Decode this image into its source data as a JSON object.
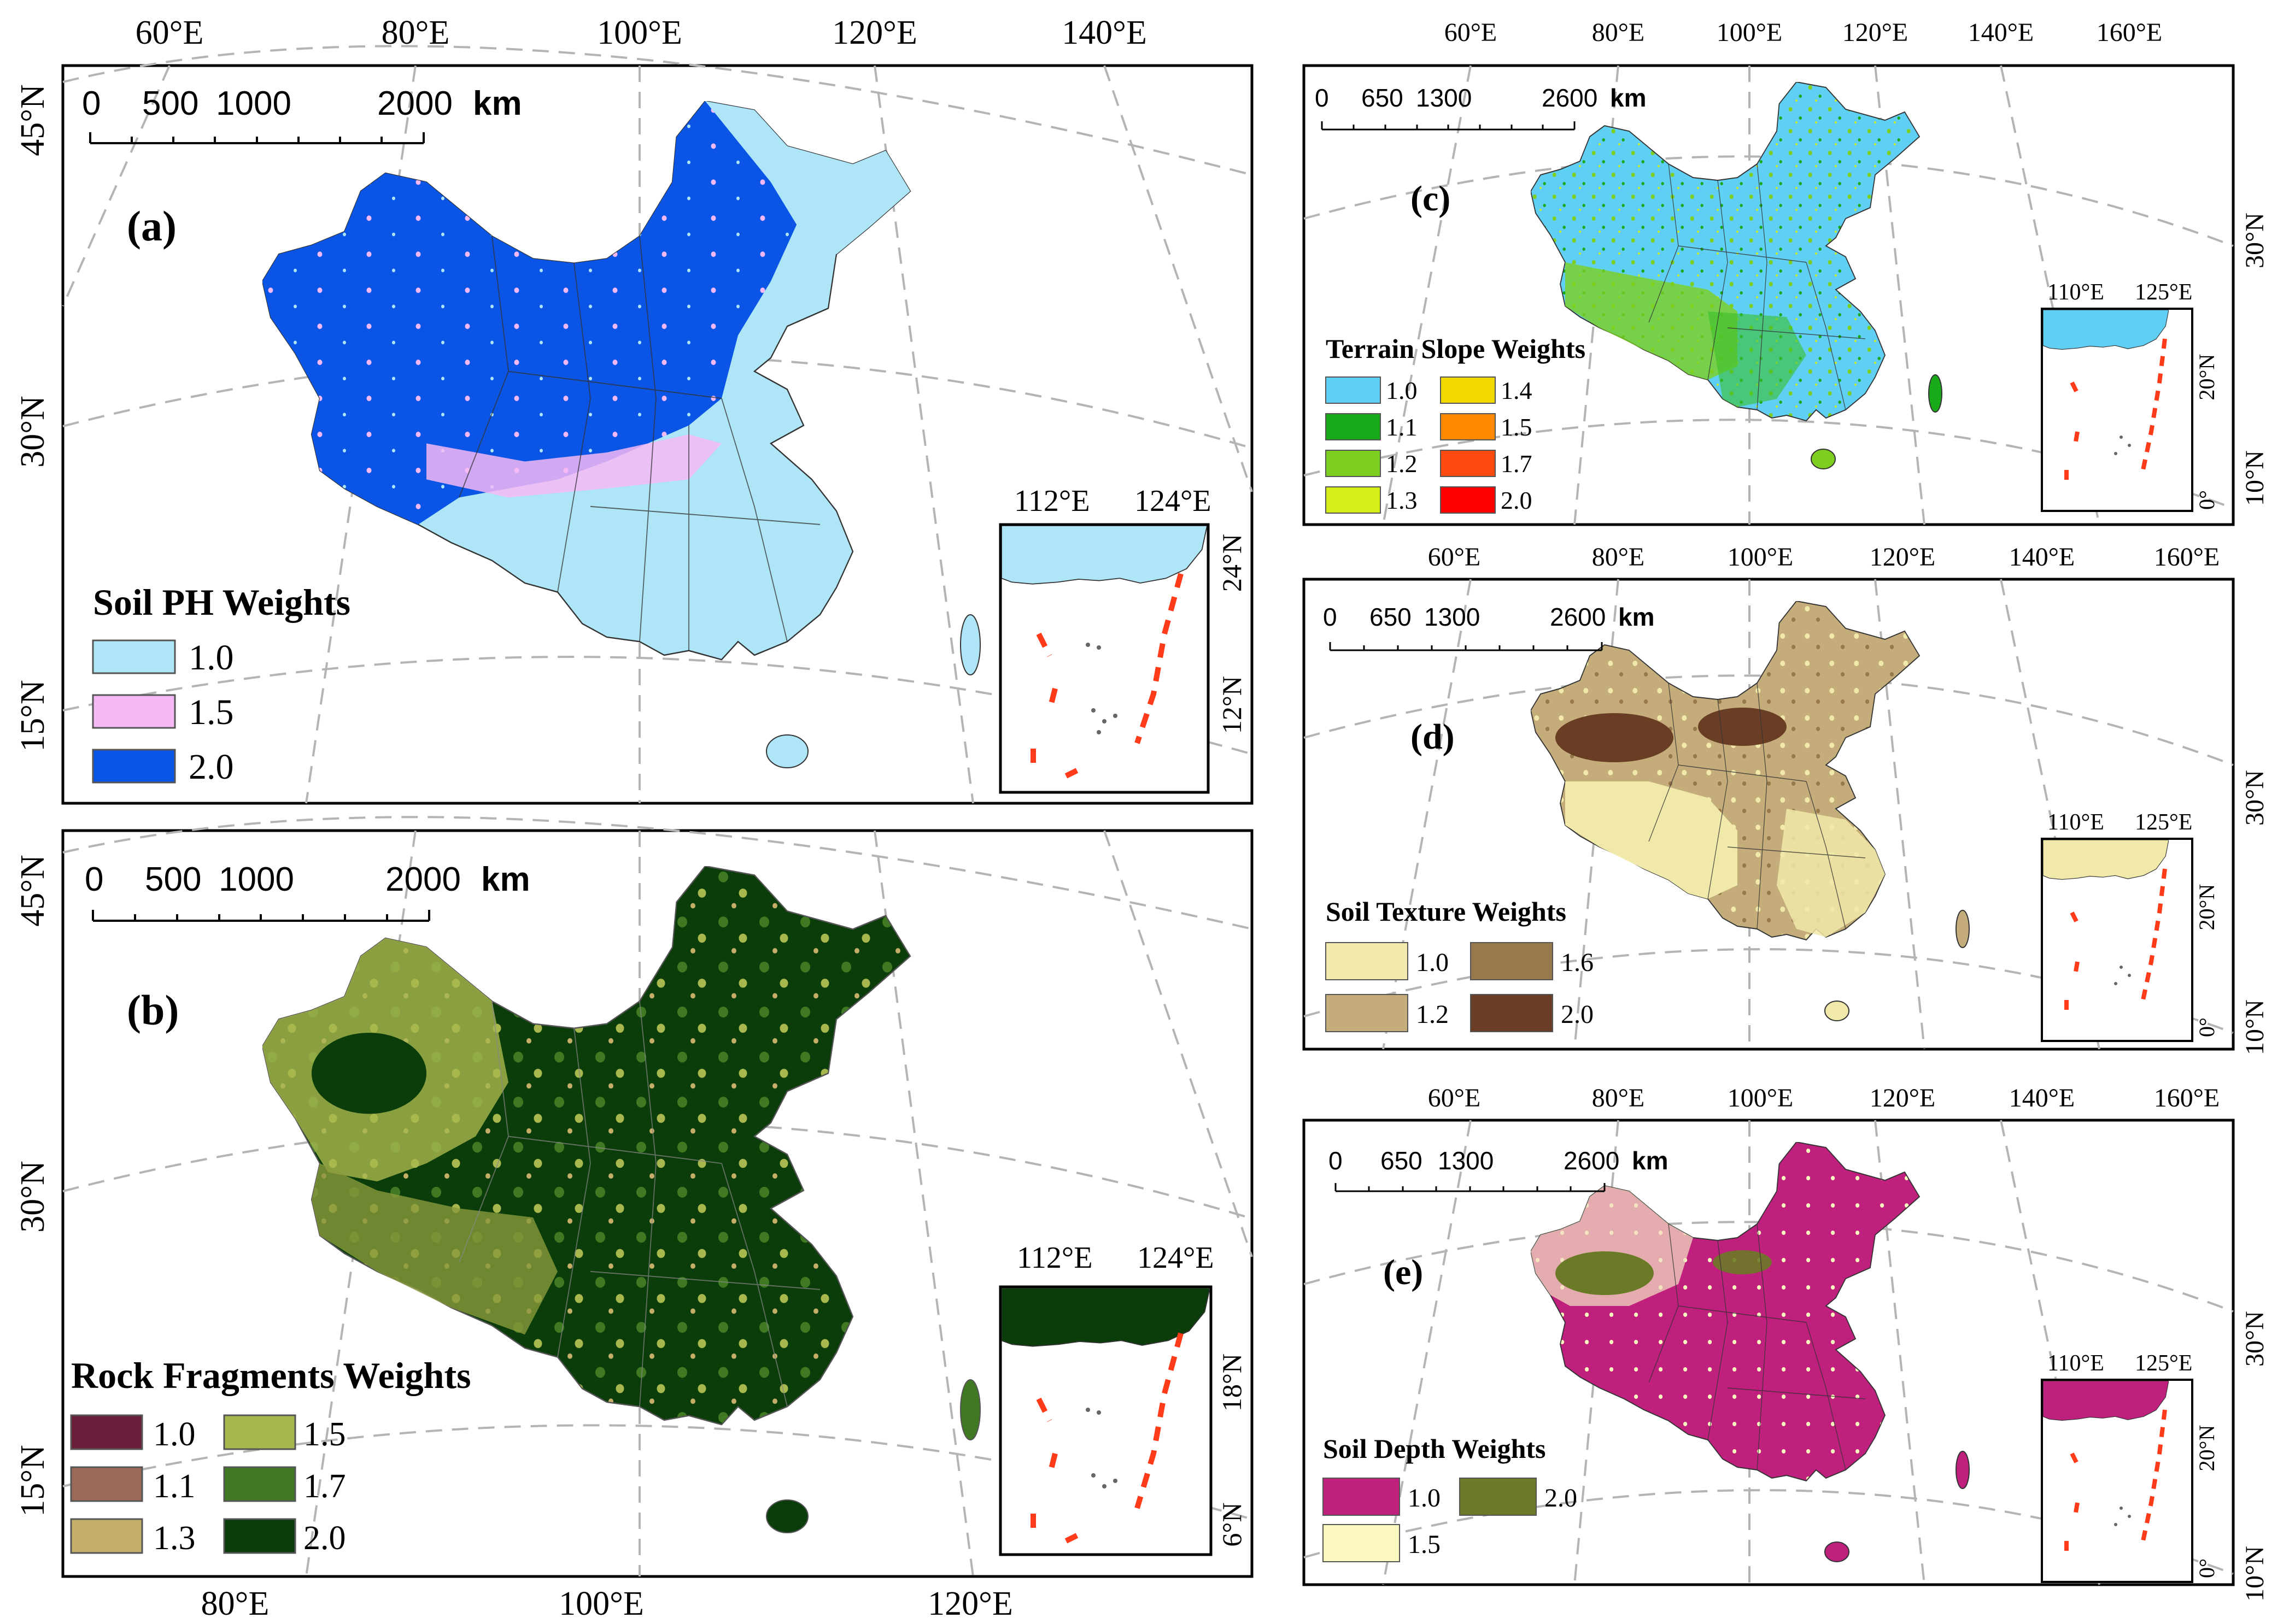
{
  "colors": {
    "ph": [
      "#aee6f8",
      "#f4b9f4",
      "#0a55e6"
    ],
    "rock": [
      "#6b1e3c",
      "#9c6a58",
      "#c4ae68",
      "#a9b84e",
      "#3f7a22",
      "#0a3d0a"
    ],
    "slope": [
      "#5fd0f4",
      "#19aa19",
      "#7ccf20",
      "#d5ee1a",
      "#f2da00",
      "#ff8a00",
      "#ff4a10",
      "#ff0000"
    ],
    "texture": [
      "#f1e9a9",
      "#c4ad7b",
      "#98794c",
      "#693e24"
    ],
    "depth": [
      "#bf1f7d",
      "#faf7bf",
      "#6b7a26"
    ],
    "dash": "#ff3b1a",
    "grid": "#b4b4b4"
  },
  "panels": {
    "a": {
      "label": "(a)",
      "legend_title": "Soil PH Weights",
      "legend": [
        "1.0",
        "1.5",
        "2.0"
      ],
      "scale_ticks": [
        "0",
        "500",
        "1000",
        "2000"
      ],
      "scale_unit": "km",
      "top_lon": [
        "60°E",
        "80°E",
        "100°E",
        "120°E",
        "140°E"
      ],
      "left_lat": [
        "45°N",
        "30°N",
        "15°N"
      ],
      "inset_lon": [
        "112°E",
        "124°E"
      ],
      "inset_lat": [
        "24°N",
        "12°N"
      ]
    },
    "b": {
      "label": "(b)",
      "legend_title": "Rock Fragments Weights",
      "legend": [
        "1.0",
        "1.5",
        "1.1",
        "1.7",
        "1.3",
        "2.0"
      ],
      "scale_ticks": [
        "0",
        "500",
        "1000",
        "2000"
      ],
      "scale_unit": "km",
      "bottom_lon": [
        "80°E",
        "100°E",
        "120°E"
      ],
      "left_lat": [
        "45°N",
        "30°N",
        "15°N"
      ],
      "inset_lon": [
        "112°E",
        "124°E"
      ],
      "inset_lat": [
        "18°N",
        "6°N"
      ]
    },
    "c": {
      "label": "(c)",
      "legend_title": "Terrain Slope Weights",
      "legend": [
        "1.0",
        "1.4",
        "1.1",
        "1.5",
        "1.2",
        "1.7",
        "1.3",
        "2.0"
      ],
      "scale_ticks": [
        "0",
        "650",
        "1300",
        "2600"
      ],
      "scale_unit": "km",
      "top_lon": [
        "60°E",
        "80°E",
        "100°E",
        "120°E",
        "140°E",
        "160°E"
      ],
      "right_lat": [
        "30°N",
        "10°N"
      ],
      "inset_lon": [
        "110°E",
        "125°E"
      ],
      "inset_lat": [
        "20°N",
        "0°"
      ]
    },
    "d": {
      "label": "(d)",
      "legend_title": "Soil Texture Weights",
      "legend": [
        "1.0",
        "1.6",
        "1.2",
        "2.0"
      ],
      "scale_ticks": [
        "0",
        "650",
        "1300",
        "2600"
      ],
      "scale_unit": "km",
      "top_lon": [
        "60°E",
        "80°E",
        "100°E",
        "120°E",
        "140°E",
        "160°E"
      ],
      "right_lat": [
        "30°N",
        "10°N"
      ],
      "inset_lon": [
        "110°E",
        "125°E"
      ],
      "inset_lat": [
        "20°N",
        "0°"
      ]
    },
    "e": {
      "label": "(e)",
      "legend_title": "Soil Depth Weights",
      "legend": [
        "1.0",
        "2.0",
        "1.5"
      ],
      "scale_ticks": [
        "0",
        "650",
        "1300",
        "2600"
      ],
      "scale_unit": "km",
      "top_lon": [
        "60°E",
        "80°E",
        "100°E",
        "120°E",
        "140°E",
        "160°E"
      ],
      "right_lat": [
        "30°N",
        "10°N"
      ],
      "inset_lon": [
        "110°E",
        "125°E"
      ],
      "inset_lat": [
        "20°N",
        "0°"
      ]
    }
  }
}
